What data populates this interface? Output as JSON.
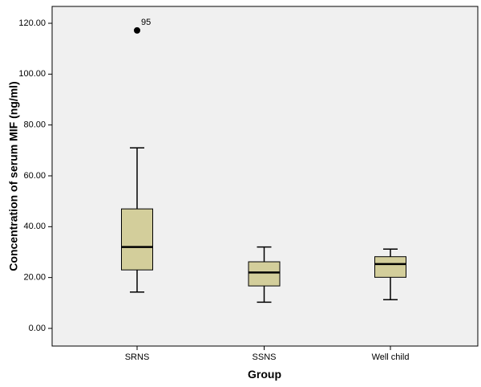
{
  "chart_data": {
    "type": "boxplot",
    "xlabel": "Group",
    "ylabel": "Concentration of serum MIF (ng/ml)",
    "ylim": [
      -6,
      127
    ],
    "yticks": [
      0,
      20,
      40,
      60,
      80,
      100,
      120
    ],
    "ytick_labels": [
      "0.00",
      "20.00",
      "40.00",
      "60.00",
      "80.00",
      "100.00",
      "120.00"
    ],
    "categories": [
      "SRNS",
      "SSNS",
      "Well child"
    ],
    "boxes": [
      {
        "category": "SRNS",
        "min": 14.3,
        "q1": 23.0,
        "median": 32.0,
        "q3": 47.0,
        "max": 71.0,
        "outliers": [
          {
            "value": 117.2,
            "label": "95"
          }
        ]
      },
      {
        "category": "SSNS",
        "min": 10.3,
        "q1": 16.7,
        "median": 22.0,
        "q3": 26.2,
        "max": 32.0,
        "outliers": []
      },
      {
        "category": "Well child",
        "min": 11.3,
        "q1": 20.1,
        "median": 25.3,
        "q3": 28.2,
        "max": 31.2,
        "outliers": []
      }
    ],
    "grid": false,
    "colors": {
      "box_fill": "#d3ce9b",
      "plot_background": "#f0f0f0",
      "stroke": "#000000"
    }
  }
}
